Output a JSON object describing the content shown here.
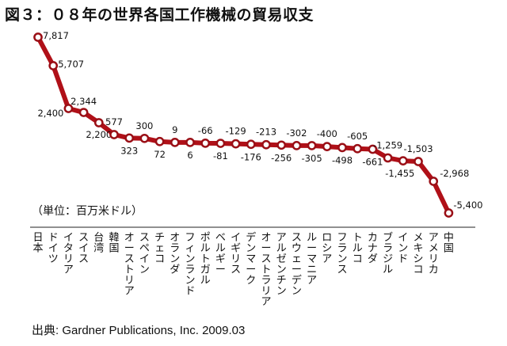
{
  "title": "図３：０８年の世界各国工作機械の貿易収支",
  "unit_note": "（単位：百万米ドル）",
  "source": "出典: Gardner Publications, Inc. 2009.03",
  "colors": {
    "line": "#b01018",
    "marker_fill": "#ffffff",
    "marker_stroke": "#9a0f16"
  },
  "chart_data": {
    "type": "line",
    "title": "図３：０８年の世界各国工作機械の貿易収支",
    "ylabel": "（単位：百万米ドル）",
    "xlabel": "",
    "categories": [
      "日本",
      "ドイツ",
      "イタリア",
      "スイス",
      "台湾",
      "韓国",
      "オーストリア",
      "スペイン",
      "チェコ",
      "オランダ",
      "フィンランド",
      "ポルトガル",
      "ベルギー",
      "イギリス",
      "デンマーク",
      "オーストラリア",
      "アルゼンチン",
      "スウェーデン",
      "ルーマニア",
      "ロシア",
      "フランス",
      "トルコ",
      "カナダ",
      "ブラジル",
      "インド",
      "メキシコ",
      "アメリカ",
      "中国"
    ],
    "values": [
      7817,
      5707,
      2400,
      2344,
      2200,
      577,
      323,
      300,
      72,
      9,
      6,
      -66,
      -81,
      -129,
      -176,
      -213,
      -256,
      -302,
      -305,
      -400,
      -498,
      -605,
      -661,
      -1259,
      -1455,
      -1503,
      -2968,
      -5400
    ],
    "data_labels": [
      "7,817",
      "5,707",
      "2,400",
      "2,344",
      "2,200",
      "577",
      "323",
      "300",
      "72",
      "9",
      "6",
      "-66",
      "-81",
      "-129",
      "-176",
      "-213",
      "-256",
      "-302",
      "-305",
      "-400",
      "-498",
      "-605",
      "-661",
      "-1,259",
      "-1,455",
      "-1,503",
      "-2,968",
      "-5,400"
    ],
    "ylim": [
      -5400,
      7817
    ],
    "grid": false,
    "legend": "none"
  }
}
